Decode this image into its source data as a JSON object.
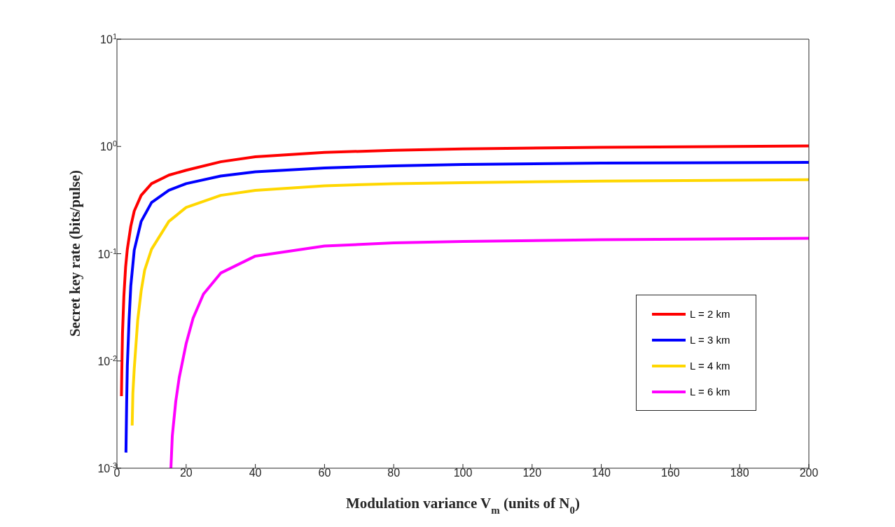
{
  "chart_data": {
    "type": "line",
    "xlabel": "Modulation variance V$_{m}$  (units of N$_{0}$)",
    "ylabel": "Secret key rate (bits/pulse)",
    "log": "y",
    "xlim": [
      0,
      200
    ],
    "xticks": [
      0,
      20,
      40,
      60,
      80,
      100,
      120,
      140,
      160,
      180,
      200
    ],
    "ylim": [
      0.001,
      10
    ],
    "yticks": [
      {
        "value": 0.001,
        "label": "10$^{-3}$"
      },
      {
        "value": 0.01,
        "label": "10$^{-2}$"
      },
      {
        "value": 0.1,
        "label": "10$^{-1}$"
      },
      {
        "value": 1,
        "label": "10$^{0}$"
      },
      {
        "value": 10,
        "label": "10$^{1}$"
      }
    ],
    "grid": false,
    "legend": "right",
    "marker": "none",
    "line_style": "solid",
    "series": [
      {
        "name": "L = 2 km",
        "color": "#ff0000",
        "x": [
          1.3,
          1.4,
          1.6,
          2,
          2.5,
          3,
          4,
          5,
          7,
          10,
          15,
          20,
          30,
          40,
          60,
          80,
          100,
          140,
          200
        ],
        "values": [
          0.0047,
          0.008,
          0.018,
          0.04,
          0.075,
          0.11,
          0.18,
          0.25,
          0.35,
          0.45,
          0.54,
          0.6,
          0.72,
          0.8,
          0.88,
          0.92,
          0.95,
          0.98,
          1.01
        ]
      },
      {
        "name": "L = 3 km",
        "color": "#0000ff",
        "x": [
          2.6,
          2.8,
          3,
          3.5,
          4,
          5,
          7,
          10,
          15,
          20,
          30,
          40,
          60,
          80,
          100,
          140,
          200
        ],
        "values": [
          0.0014,
          0.004,
          0.009,
          0.024,
          0.05,
          0.108,
          0.2,
          0.3,
          0.39,
          0.45,
          0.53,
          0.58,
          0.63,
          0.66,
          0.68,
          0.7,
          0.71
        ]
      },
      {
        "name": "L = 4 km",
        "color": "#ffd700",
        "x": [
          4.4,
          4.6,
          5,
          6,
          7,
          8,
          10,
          15,
          20,
          30,
          40,
          60,
          80,
          100,
          140,
          200
        ],
        "values": [
          0.0025,
          0.005,
          0.0085,
          0.024,
          0.045,
          0.07,
          0.11,
          0.2,
          0.27,
          0.35,
          0.39,
          0.43,
          0.45,
          0.46,
          0.475,
          0.49
        ]
      },
      {
        "name": "L = 6 km",
        "color": "#ff00ff",
        "x": [
          15.6,
          16,
          17,
          18,
          20,
          22,
          25,
          30,
          40,
          60,
          80,
          100,
          140,
          200
        ],
        "values": [
          0.001,
          0.002,
          0.0042,
          0.007,
          0.0145,
          0.025,
          0.042,
          0.066,
          0.095,
          0.118,
          0.126,
          0.13,
          0.135,
          0.139
        ]
      }
    ]
  }
}
